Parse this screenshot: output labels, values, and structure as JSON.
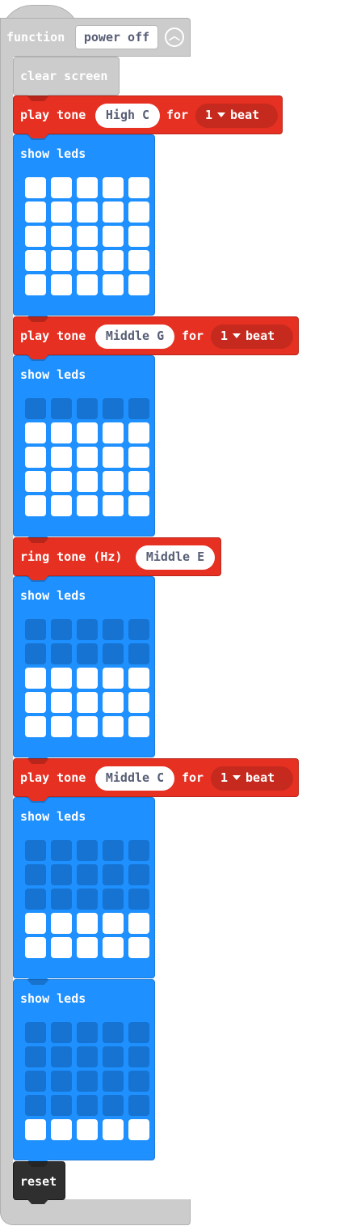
{
  "function_block": {
    "keyword": "function",
    "name": "power off",
    "collapse_icon": "chevron-up-icon"
  },
  "clear_screen": {
    "label": "clear screen"
  },
  "blocks": [
    {
      "type": "play_tone",
      "prefix": "play tone",
      "note": "High C",
      "for_label": "for",
      "beat_value": "1",
      "beat_label": "beat"
    },
    {
      "type": "show_leds",
      "label": "show leds",
      "leds": [
        [
          1,
          1,
          1,
          1,
          1
        ],
        [
          1,
          1,
          1,
          1,
          1
        ],
        [
          1,
          1,
          1,
          1,
          1
        ],
        [
          1,
          1,
          1,
          1,
          1
        ],
        [
          1,
          1,
          1,
          1,
          1
        ]
      ]
    },
    {
      "type": "play_tone",
      "prefix": "play tone",
      "note": "Middle G",
      "for_label": "for",
      "beat_value": "1",
      "beat_label": "beat"
    },
    {
      "type": "show_leds",
      "label": "show leds",
      "leds": [
        [
          0,
          0,
          0,
          0,
          0
        ],
        [
          1,
          1,
          1,
          1,
          1
        ],
        [
          1,
          1,
          1,
          1,
          1
        ],
        [
          1,
          1,
          1,
          1,
          1
        ],
        [
          1,
          1,
          1,
          1,
          1
        ]
      ]
    },
    {
      "type": "ring_tone",
      "prefix": "ring tone (Hz)",
      "note": "Middle E"
    },
    {
      "type": "show_leds",
      "label": "show leds",
      "leds": [
        [
          0,
          0,
          0,
          0,
          0
        ],
        [
          0,
          0,
          0,
          0,
          0
        ],
        [
          1,
          1,
          1,
          1,
          1
        ],
        [
          1,
          1,
          1,
          1,
          1
        ],
        [
          1,
          1,
          1,
          1,
          1
        ]
      ]
    },
    {
      "type": "play_tone",
      "prefix": "play tone",
      "note": "Middle C",
      "for_label": "for",
      "beat_value": "1",
      "beat_label": "beat"
    },
    {
      "type": "show_leds",
      "label": "show leds",
      "leds": [
        [
          0,
          0,
          0,
          0,
          0
        ],
        [
          0,
          0,
          0,
          0,
          0
        ],
        [
          0,
          0,
          0,
          0,
          0
        ],
        [
          1,
          1,
          1,
          1,
          1
        ],
        [
          1,
          1,
          1,
          1,
          1
        ]
      ]
    },
    {
      "type": "show_leds",
      "label": "show leds",
      "leds": [
        [
          0,
          0,
          0,
          0,
          0
        ],
        [
          0,
          0,
          0,
          0,
          0
        ],
        [
          0,
          0,
          0,
          0,
          0
        ],
        [
          0,
          0,
          0,
          0,
          0
        ],
        [
          1,
          1,
          1,
          1,
          1
        ]
      ]
    }
  ],
  "reset_block": {
    "label": "reset"
  },
  "colors": {
    "function_gray": "#cccccc",
    "music_red": "#e63022",
    "music_dropdown": "#c62a1e",
    "basic_blue": "#1e90ff",
    "led_off": "#1673d1",
    "led_on": "#ffffff",
    "control_dark": "#2f2f2f"
  }
}
